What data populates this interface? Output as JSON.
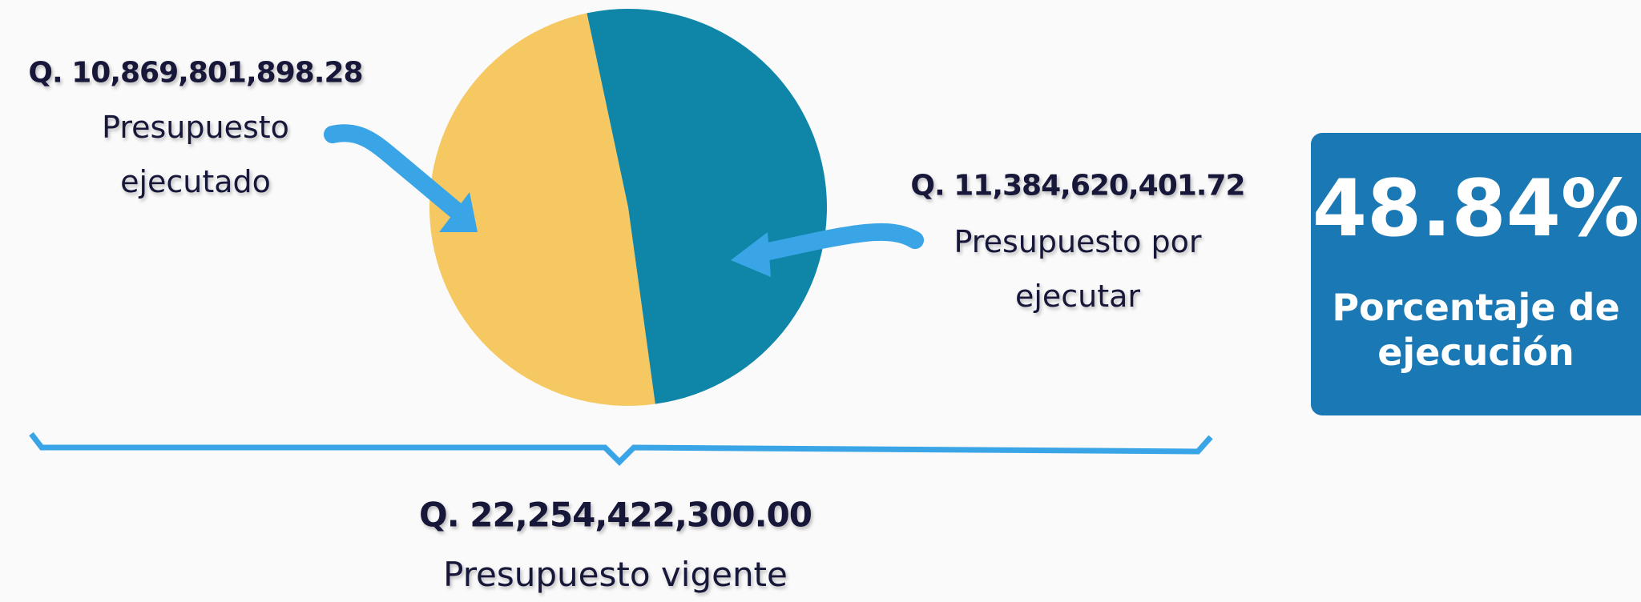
{
  "chart_data": {
    "type": "pie",
    "categories": [
      "Presupuesto ejecutado",
      "Presupuesto por ejecutar"
    ],
    "values": [
      10869801898.28,
      11384620401.72
    ],
    "value_labels": [
      "Q.  10,869,801,898.28",
      "Q.  11,384,620,401.72"
    ],
    "colors": [
      "#f5c862",
      "#0f86a8"
    ],
    "total": {
      "value": 22254422300,
      "value_label": "Q. 22,254,422,300.00",
      "label": "Presupuesto vigente"
    },
    "kpi": {
      "value_label": "48.84%",
      "label": "Porcentaje de ejecución"
    }
  }
}
